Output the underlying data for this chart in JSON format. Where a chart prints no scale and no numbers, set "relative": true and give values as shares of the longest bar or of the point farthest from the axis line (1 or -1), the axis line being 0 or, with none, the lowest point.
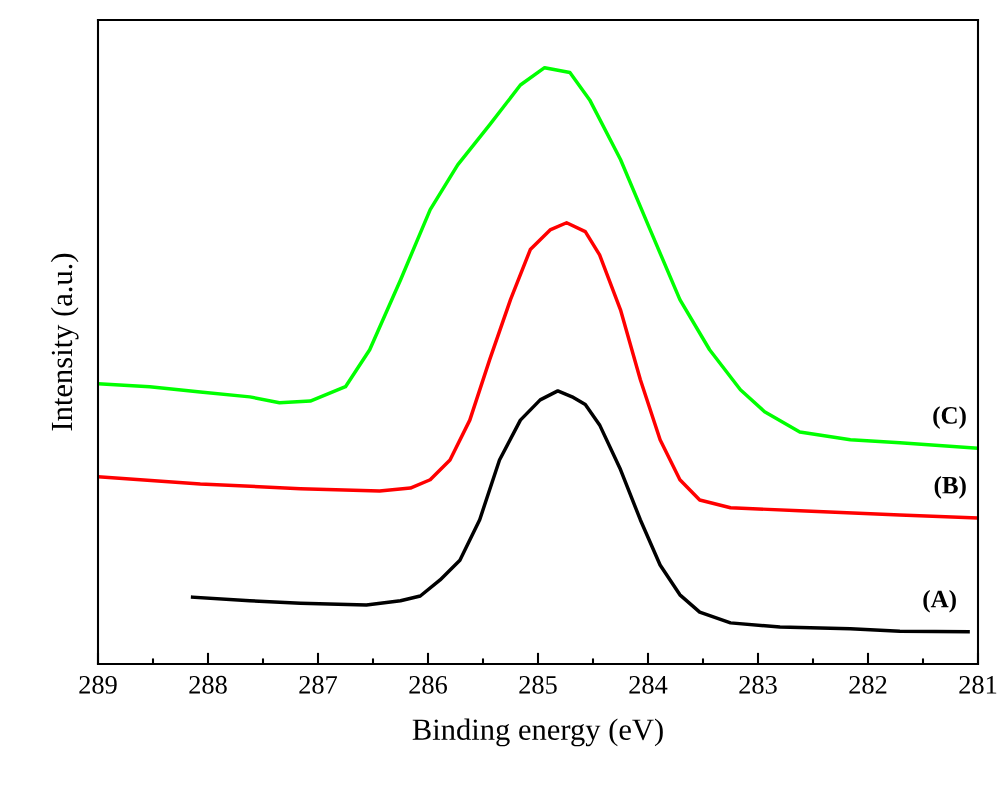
{
  "chart_data": {
    "type": "line",
    "relative": true,
    "xlabel": "Binding energy (eV)",
    "ylabel": "Intensity (a.u.)",
    "xlim": [
      289,
      281
    ],
    "xticks": [
      289,
      288,
      287,
      286,
      285,
      284,
      283,
      282,
      281
    ],
    "grid": false,
    "legend": false,
    "marker": "none",
    "line_style": "solid",
    "series": [
      {
        "name": "(A)",
        "color": "#000000",
        "x": [
          288.14,
          287.62,
          287.16,
          286.56,
          286.25,
          286.07,
          285.89,
          285.71,
          285.53,
          285.35,
          285.16,
          284.98,
          284.82,
          284.69,
          284.57,
          284.44,
          284.25,
          284.07,
          283.89,
          283.71,
          283.53,
          283.25,
          282.8,
          282.16,
          281.71,
          281.09
        ],
        "values": [
          0.112,
          0.106,
          0.102,
          0.099,
          0.106,
          0.114,
          0.141,
          0.174,
          0.242,
          0.342,
          0.409,
          0.443,
          0.458,
          0.448,
          0.435,
          0.401,
          0.326,
          0.242,
          0.166,
          0.116,
          0.087,
          0.069,
          0.062,
          0.059,
          0.055,
          0.054
        ]
      },
      {
        "name": "(B)",
        "color": "#ff0000",
        "x": [
          289,
          288.07,
          287.16,
          286.44,
          286.16,
          285.98,
          285.8,
          285.62,
          285.44,
          285.25,
          285.07,
          284.89,
          284.74,
          284.57,
          284.44,
          284.25,
          284.07,
          283.89,
          283.71,
          283.53,
          283.25,
          282.62,
          281.71,
          281.0
        ],
        "values": [
          0.314,
          0.302,
          0.294,
          0.29,
          0.295,
          0.309,
          0.342,
          0.409,
          0.51,
          0.611,
          0.695,
          0.728,
          0.74,
          0.725,
          0.686,
          0.594,
          0.477,
          0.376,
          0.309,
          0.275,
          0.262,
          0.257,
          0.25,
          0.245
        ]
      },
      {
        "name": "(C)",
        "color": "#00ff00",
        "x": [
          289,
          288.53,
          288.07,
          287.62,
          287.35,
          287.07,
          286.75,
          286.53,
          286.25,
          285.98,
          285.73,
          285.44,
          285.16,
          284.94,
          284.71,
          284.53,
          284.25,
          283.98,
          283.71,
          283.44,
          283.16,
          282.94,
          282.62,
          282.16,
          281.71,
          281.0
        ],
        "values": [
          0.47,
          0.465,
          0.456,
          0.448,
          0.438,
          0.441,
          0.465,
          0.527,
          0.644,
          0.762,
          0.837,
          0.904,
          0.971,
          1.0,
          0.992,
          0.946,
          0.846,
          0.728,
          0.611,
          0.527,
          0.46,
          0.423,
          0.389,
          0.376,
          0.371,
          0.362
        ]
      }
    ]
  }
}
